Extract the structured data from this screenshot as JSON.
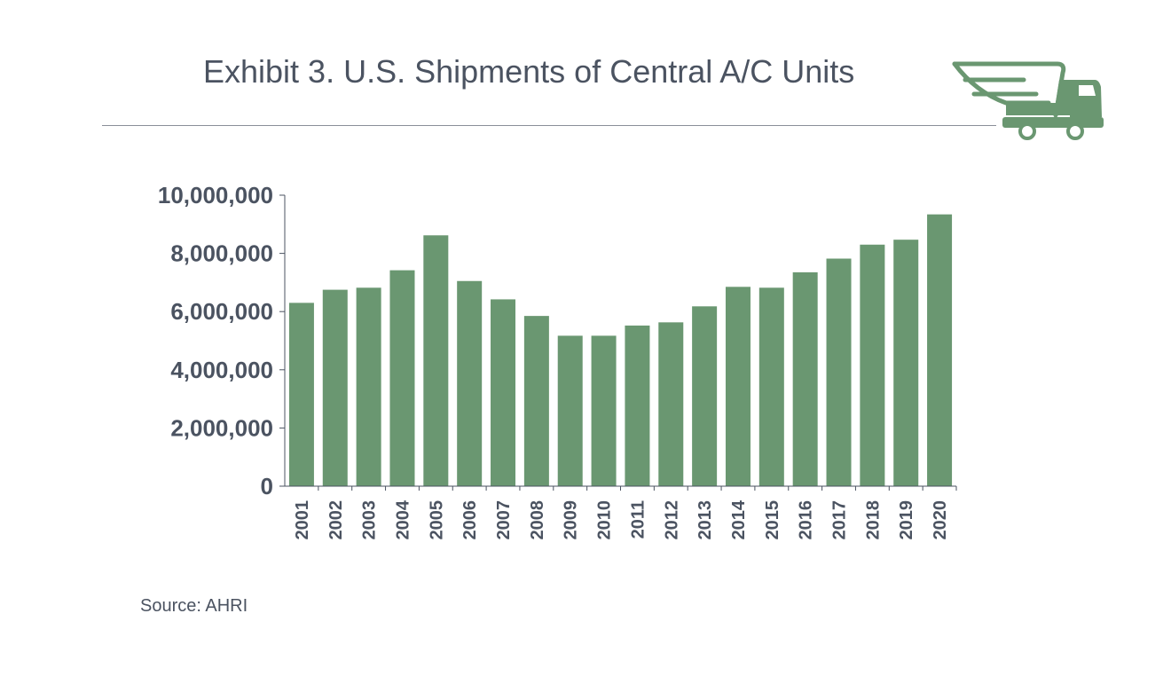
{
  "header": {
    "title": "Exhibit 3. U.S. Shipments of Central A/C Units",
    "logo_icon": "winged-truck-icon"
  },
  "footer": {
    "source": "Source: AHRI"
  },
  "colors": {
    "bar": "#6a9771",
    "text": "#4b5361",
    "axis": "#4b5361"
  },
  "chart_data": {
    "type": "bar",
    "title": "Exhibit 3. U.S. Shipments of Central A/C Units",
    "xlabel": "",
    "ylabel": "",
    "categories": [
      "2001",
      "2002",
      "2003",
      "2004",
      "2005",
      "2006",
      "2007",
      "2008",
      "2009",
      "2010",
      "2011",
      "2012",
      "2013",
      "2014",
      "2015",
      "2016",
      "2017",
      "2018",
      "2019",
      "2020"
    ],
    "values": [
      6300000,
      6750000,
      6820000,
      7420000,
      8620000,
      7050000,
      6420000,
      5850000,
      5170000,
      5170000,
      5520000,
      5630000,
      6180000,
      6850000,
      6820000,
      7350000,
      7820000,
      8300000,
      8470000,
      9340000
    ],
    "ylim": [
      0,
      10000000
    ],
    "yticks": [
      0,
      2000000,
      4000000,
      6000000,
      8000000,
      10000000
    ],
    "ytick_labels": [
      "0",
      "2,000,000",
      "4,000,000",
      "6,000,000",
      "8,000,000",
      "10,000,000"
    ],
    "grid": false,
    "legend": "none"
  }
}
